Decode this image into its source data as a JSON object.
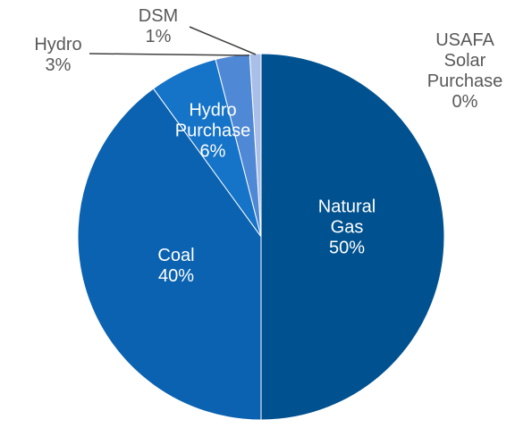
{
  "chart_data": {
    "type": "pie",
    "categories": [
      "Natural Gas",
      "Coal",
      "Hydro Purchase",
      "Hydro",
      "DSM",
      "USAFA Solar Purchase"
    ],
    "values": [
      50,
      40,
      6,
      3,
      1,
      0
    ],
    "value_labels": [
      "50%",
      "40%",
      "6%",
      "3%",
      "1%",
      "0%"
    ],
    "colors": [
      "#00518f",
      "#0a62b0",
      "#1573c8",
      "#4f88d4",
      "#a9bfe8",
      "#d9e3f5"
    ]
  }
}
